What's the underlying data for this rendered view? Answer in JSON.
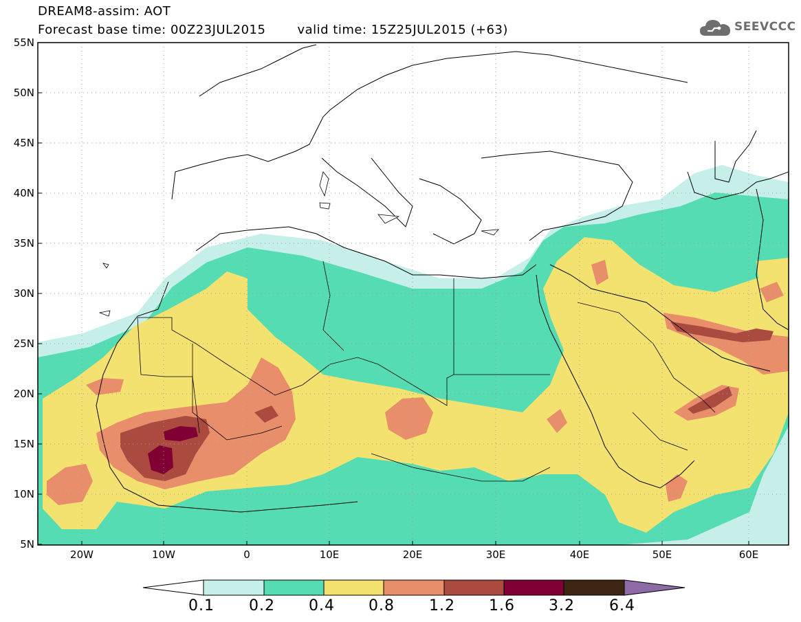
{
  "header": {
    "model": "DREAM8-assim: AOT",
    "base_time_label": "Forecast base time: 00Z23JUL2015",
    "valid_time_label": "valid time: 15Z25JUL2015 (+63)"
  },
  "logo": {
    "text": "SEEVCCC",
    "icon": "cloud-icon"
  },
  "map": {
    "lon_range": [
      -25,
      65
    ],
    "lat_range": [
      5,
      55
    ],
    "lat_ticks": [
      "55N",
      "50N",
      "45N",
      "40N",
      "35N",
      "30N",
      "25N",
      "20N",
      "15N",
      "10N",
      "5N"
    ],
    "lon_ticks": [
      "20W",
      "10W",
      "0",
      "10E",
      "20E",
      "30E",
      "40E",
      "50E",
      "60E"
    ],
    "grid": "dotted"
  },
  "colorbar": {
    "labels": [
      "0.1",
      "0.2",
      "0.4",
      "0.8",
      "1.2",
      "1.6",
      "3.2",
      "6.4"
    ],
    "colors": [
      "#ffffff",
      "#c6efe9",
      "#55dcb3",
      "#f4e270",
      "#e88e6a",
      "#ab4a3f",
      "#800033",
      "#3e2614",
      "#8e6aa6"
    ]
  }
}
